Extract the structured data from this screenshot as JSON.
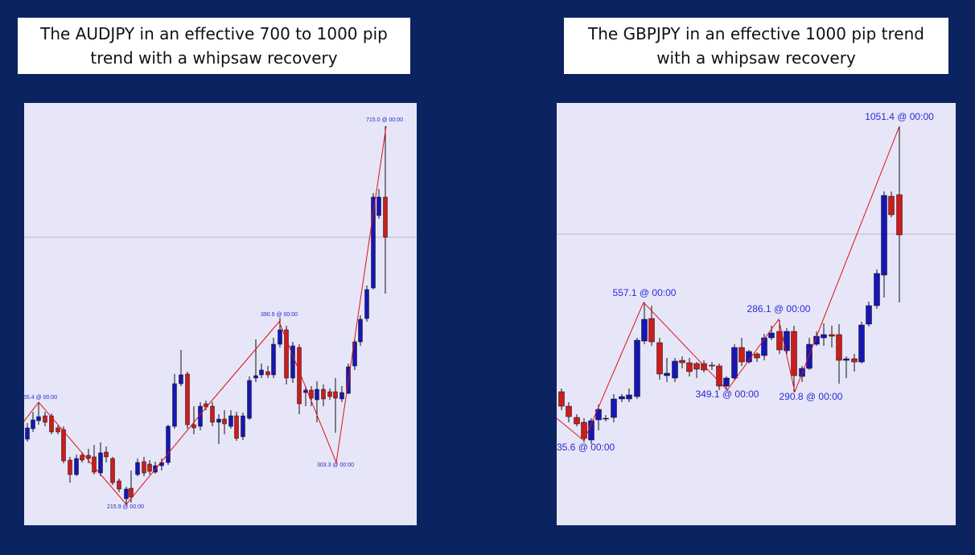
{
  "panels": [
    {
      "title": "The AUDJPY in an effective 700 to 1000 pip trend with a whipsaw recovery",
      "labels": [
        "55.4 @ 00:00",
        "215.9 @ 00:00",
        "390.9 @ 00:00",
        "303.3 @ 00:00",
        "715.0 @ 00:00"
      ]
    },
    {
      "title": "The GBPJPY in an effective 1000 pip trend with a whipsaw recovery",
      "labels": [
        "35.6 @ 00:00",
        "557.1 @ 00:00",
        "349.1 @ 00:00",
        "286.1 @ 00:00",
        "290.8 @ 00:00",
        "1051.4 @ 00:00"
      ]
    }
  ]
}
